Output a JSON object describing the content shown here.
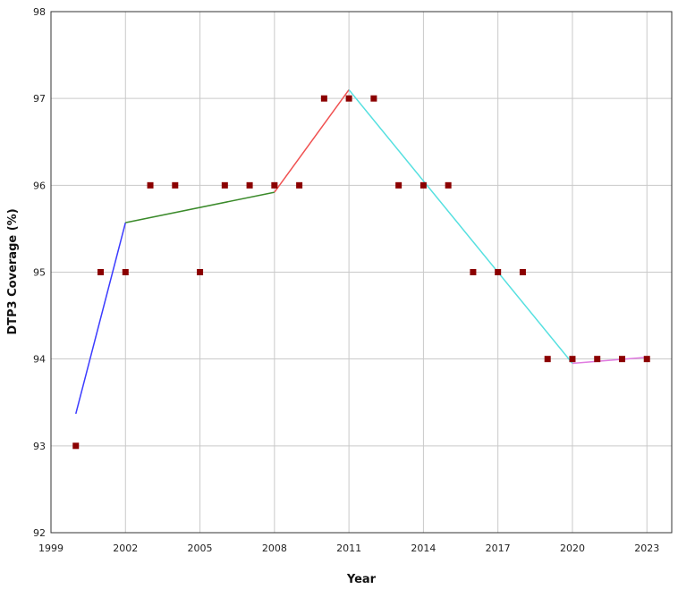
{
  "chart_data": {
    "type": "scatter",
    "xlabel": "Year",
    "ylabel": "DTP3 Coverage (%)",
    "xlim": [
      1999,
      2024
    ],
    "ylim": [
      92,
      98
    ],
    "x_ticks": [
      1999,
      2002,
      2005,
      2008,
      2011,
      2014,
      2017,
      2020,
      2023
    ],
    "y_ticks": [
      92,
      93,
      94,
      95,
      96,
      97,
      98
    ],
    "x_tick_labels": [
      "1999",
      "2002",
      "2005",
      "2008",
      "2011",
      "2014",
      "2017",
      "2020",
      "2023"
    ],
    "y_tick_labels": [
      "92",
      "93",
      "94",
      "95",
      "96",
      "97",
      "98"
    ],
    "grid": true,
    "marker_color": "#8b0000",
    "points": {
      "x": [
        2000,
        2001,
        2002,
        2003,
        2004,
        2005,
        2006,
        2007,
        2008,
        2009,
        2010,
        2011,
        2012,
        2013,
        2014,
        2015,
        2016,
        2017,
        2018,
        2019,
        2020,
        2021,
        2022,
        2023
      ],
      "y": [
        93,
        95,
        95,
        96,
        96,
        95,
        96,
        96,
        96,
        96,
        97,
        97,
        97,
        96,
        96,
        96,
        95,
        95,
        95,
        94,
        94,
        94,
        94,
        94
      ]
    },
    "segments": [
      {
        "x": [
          2000,
          2002
        ],
        "y": [
          93.37,
          95.57
        ],
        "color": "#3b3bff"
      },
      {
        "x": [
          2002,
          2008
        ],
        "y": [
          95.57,
          95.92
        ],
        "color": "#3a8a2a"
      },
      {
        "x": [
          2008,
          2011
        ],
        "y": [
          95.92,
          97.1
        ],
        "color": "#f05050"
      },
      {
        "x": [
          2011,
          2020
        ],
        "y": [
          97.1,
          93.95
        ],
        "color": "#56e0e0"
      },
      {
        "x": [
          2020,
          2023
        ],
        "y": [
          93.95,
          94.02
        ],
        "color": "#e07ae0"
      }
    ]
  }
}
